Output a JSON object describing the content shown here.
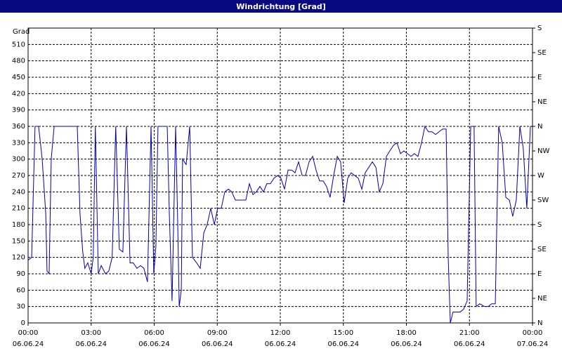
{
  "chart_data": {
    "type": "line",
    "title": "Windrichtung [Grad]",
    "y_label": "Grad",
    "x": [
      0,
      0.17,
      0.33,
      0.5,
      0.67,
      0.84,
      0.9,
      1.0,
      1.1,
      1.24,
      2.34,
      2.47,
      2.6,
      2.7,
      2.84,
      3.0,
      3.1,
      3.2,
      3.34,
      3.48,
      3.68,
      3.84,
      4.0,
      4.17,
      4.34,
      4.51,
      4.68,
      4.85,
      5.0,
      5.18,
      5.35,
      5.51,
      5.68,
      5.85,
      5.98,
      6.08,
      6.18,
      6.62,
      6.72,
      6.85,
      7.02,
      7.12,
      7.19,
      7.29,
      7.35,
      7.52,
      7.69,
      7.82,
      8.02,
      8.19,
      8.36,
      8.52,
      8.69,
      8.86,
      9.02,
      9.19,
      9.36,
      9.53,
      9.69,
      9.86,
      10.03,
      10.36,
      10.53,
      10.7,
      10.86,
      11.03,
      11.2,
      11.36,
      11.53,
      11.7,
      11.87,
      12.03,
      12.2,
      12.37,
      12.54,
      12.7,
      12.87,
      13.04,
      13.2,
      13.37,
      13.54,
      13.7,
      13.87,
      14.04,
      14.2,
      14.37,
      14.54,
      14.71,
      14.87,
      15.04,
      15.21,
      15.37,
      15.54,
      15.71,
      15.88,
      16.04,
      16.21,
      16.38,
      16.55,
      16.71,
      16.88,
      17.05,
      17.21,
      17.38,
      17.55,
      17.72,
      17.88,
      18.05,
      18.22,
      18.38,
      18.55,
      18.72,
      18.88,
      19.05,
      19.22,
      19.39,
      19.55,
      19.72,
      19.89,
      19.99,
      20.09,
      20.22,
      20.39,
      20.56,
      20.72,
      20.89,
      21.06,
      21.22,
      21.32,
      21.49,
      21.72,
      21.89,
      22.06,
      22.23,
      22.39,
      22.56,
      22.73,
      22.9,
      23.06,
      23.23,
      23.4,
      23.56,
      23.73,
      23.9
    ],
    "series": [
      {
        "color": "#0000a8",
        "values": [
          115,
          120,
          360,
          360,
          300,
          200,
          95,
          90,
          300,
          360,
          360,
          200,
          130,
          100,
          110,
          90,
          120,
          360,
          90,
          105,
          90,
          95,
          120,
          360,
          135,
          130,
          360,
          110,
          110,
          100,
          105,
          100,
          75,
          360,
          90,
          140,
          360,
          360,
          200,
          40,
          360,
          180,
          30,
          60,
          300,
          290,
          360,
          120,
          110,
          100,
          165,
          180,
          210,
          180,
          210,
          210,
          240,
          245,
          240,
          225,
          225,
          225,
          255,
          235,
          240,
          250,
          240,
          255,
          255,
          265,
          270,
          265,
          245,
          280,
          280,
          275,
          295,
          270,
          270,
          295,
          305,
          280,
          260,
          260,
          250,
          230,
          270,
          305,
          295,
          220,
          265,
          275,
          270,
          265,
          245,
          275,
          285,
          295,
          285,
          240,
          255,
          305,
          315,
          325,
          330,
          310,
          315,
          310,
          305,
          310,
          305,
          330,
          360,
          350,
          350,
          345,
          350,
          355,
          355,
          120,
          0,
          20,
          20,
          20,
          25,
          40,
          360,
          360,
          30,
          35,
          30,
          30,
          35,
          35,
          360,
          330,
          230,
          225,
          195,
          225,
          360,
          320,
          210,
          360
        ]
      }
    ],
    "xlim": [
      0,
      24
    ],
    "ylim": [
      0,
      540
    ],
    "xticks": [
      {
        "value": 0,
        "label": "00:00 06.06.24"
      },
      {
        "value": 3,
        "label": "03:00 06.06.24"
      },
      {
        "value": 6,
        "label": "06:00 06.06.24"
      },
      {
        "value": 9,
        "label": "09:00 06.06.24"
      },
      {
        "value": 12,
        "label": "12:00 06.06.24"
      },
      {
        "value": 15,
        "label": "15:00 06.06.24"
      },
      {
        "value": 18,
        "label": "18:00 06.06.24"
      },
      {
        "value": 21,
        "label": "21:00 06.06.24"
      },
      {
        "value": 24,
        "label": "00:00 07.06.24"
      }
    ],
    "yticks": [
      0,
      30,
      60,
      90,
      120,
      150,
      180,
      210,
      240,
      270,
      300,
      330,
      360,
      390,
      420,
      450,
      480,
      510
    ],
    "y2lim": [
      0,
      540
    ],
    "y2ticks": [
      {
        "value": 0,
        "label": "N"
      },
      {
        "value": 45,
        "label": "NE"
      },
      {
        "value": 90,
        "label": "E"
      },
      {
        "value": 135,
        "label": "SE"
      },
      {
        "value": 180,
        "label": "S"
      },
      {
        "value": 225,
        "label": "SW"
      },
      {
        "value": 270,
        "label": "W"
      },
      {
        "value": 315,
        "label": "NW"
      },
      {
        "value": 360,
        "label": "N"
      },
      {
        "value": 405,
        "label": "NE"
      },
      {
        "value": 450,
        "label": "E"
      },
      {
        "value": 495,
        "label": "SE"
      },
      {
        "value": 540,
        "label": "S"
      }
    ],
    "grid": true
  }
}
